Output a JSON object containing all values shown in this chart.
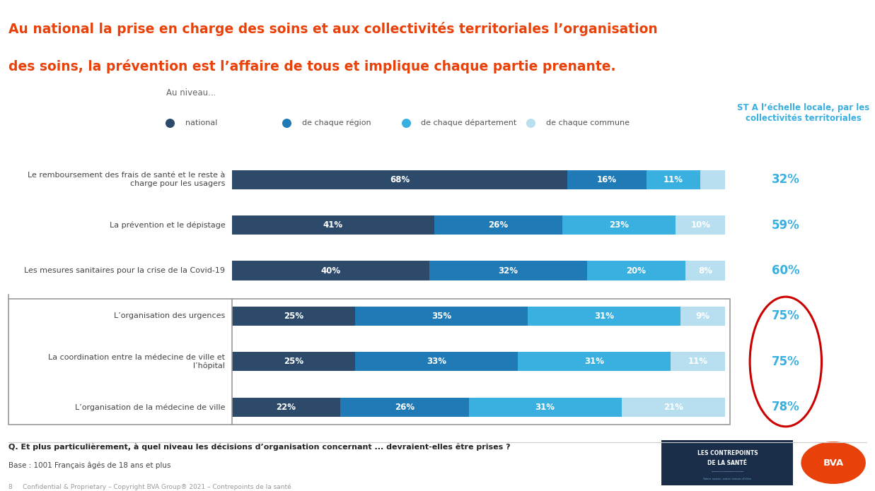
{
  "title_line1": "Au national la prise en charge des soins et aux collectivités territoriales l’organisation",
  "title_line2": "des soins, la prévention est l’affaire de tous et implique chaque partie prenante.",
  "title_color": "#e8410a",
  "bg_color": "#ffffff",
  "legend_header": "Au niveau...",
  "legend_items": [
    "national",
    "de chaque région",
    "de chaque département",
    "de chaque commune"
  ],
  "legend_colors": [
    "#2d4a6b",
    "#1f7ab5",
    "#3ab0e0",
    "#b8dff0"
  ],
  "st_label": "ST A l’échelle locale, par les\ncollectivités territoriales",
  "st_color": "#3ab0e0",
  "categories": [
    "Le remboursement des frais de santé et le reste à\ncharge pour les usagers",
    "La prévention et le dépistage",
    "Les mesures sanitaires pour la crise de la Covid-19",
    "L’organisation des urgences",
    "La coordination entre la médecine de ville et\nl’hôpital",
    "L’organisation de la médecine de ville"
  ],
  "values": [
    [
      68,
      16,
      11,
      5
    ],
    [
      41,
      26,
      23,
      10
    ],
    [
      40,
      32,
      20,
      8
    ],
    [
      25,
      35,
      31,
      9
    ],
    [
      25,
      33,
      31,
      11
    ],
    [
      22,
      26,
      31,
      21
    ]
  ],
  "st_values": [
    "32%",
    "59%",
    "60%",
    "75%",
    "75%",
    "78%"
  ],
  "colors": [
    "#2d4a6b",
    "#1f7ab5",
    "#3ab0e0",
    "#b8dff0"
  ],
  "bar_height": 0.42,
  "question_text": "Q. Et plus particulièrement, à quel niveau les décisions d’organisation concernant ... devraient-elles être prises ?",
  "base_text": "Base : 1001 Français âgés de 18 ans et plus",
  "footer_text": "8     Confidential & Proprietary – Copyright BVA Group® 2021 – Contrepoints de la santé"
}
